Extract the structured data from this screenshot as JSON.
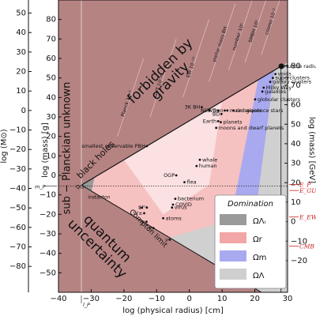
{
  "chart_data": {
    "type": "area",
    "title": "",
    "xlabel": "log (physical radius) [cm]",
    "ylabel_left_outer": "log (M⊙)",
    "ylabel_left_inner": "log (mass) [g]",
    "ylabel_right": "log (mass) [GeV]",
    "xlim": [
      -40,
      30
    ],
    "ylim": [
      -60,
      90
    ],
    "x_ticks": [
      -40,
      -30,
      -20,
      -10,
      0,
      10,
      20,
      30
    ],
    "y_ticks_left_g": [
      -50,
      -40,
      -30,
      -20,
      -10,
      0,
      10,
      20,
      30,
      40,
      50,
      60,
      70,
      80
    ],
    "y_ticks_left_msun": [
      -80,
      -70,
      -60,
      -50,
      -40,
      -30,
      -20,
      -10,
      0,
      10,
      20,
      30,
      40,
      50
    ],
    "y_ticks_right_gev": [
      -20,
      -10,
      0,
      10,
      20,
      30,
      40,
      50,
      60,
      70,
      80
    ],
    "regions": [
      {
        "name": "forbidden by gravity",
        "label_lines": [
          "forbidden by",
          "gravity"
        ]
      },
      {
        "name": "quantum uncertainty",
        "label_lines": [
          "quantum",
          "uncertainty"
        ]
      },
      {
        "name": "sub-Planckian unknown",
        "label_lines": [
          "sub − Planckian unknown"
        ]
      },
      {
        "name": "black holes",
        "label_lines": [
          "black holes"
        ]
      },
      {
        "name": "Compton limit",
        "label_lines": [
          "Compton limit"
        ]
      }
    ],
    "objects": [
      {
        "label": "Hubble radius",
        "x": 28.1,
        "y": 56
      },
      {
        "label": "voids",
        "x": 26.3,
        "y": 52
      },
      {
        "label": "superclusters",
        "x": 25.5,
        "y": 50
      },
      {
        "label": "galaxy clusters",
        "x": 24.7,
        "y": 48
      },
      {
        "label": "Milky Way",
        "x": 22.7,
        "y": 45
      },
      {
        "label": "galaxies",
        "x": 22.3,
        "y": 43
      },
      {
        "label": "globular clusters",
        "x": 20.1,
        "y": 39
      },
      {
        "label": "main sequence stars",
        "x": 11.6,
        "y": 33.3
      },
      {
        "label": "red giants",
        "x": 13.5,
        "y": 33.3
      },
      {
        "label": "planets",
        "x": 9.6,
        "y": 27.3
      },
      {
        "label": "moons and dwarf planets",
        "x": 8.2,
        "y": 24.4
      },
      {
        "label": "Sun",
        "x": 10.8,
        "y": 33.3
      },
      {
        "label": "BD",
        "x": 9.8,
        "y": 31.5
      },
      {
        "label": "WD",
        "x": 8.8,
        "y": 33.3
      },
      {
        "label": "Earth",
        "x": 8.8,
        "y": 27.8
      },
      {
        "label": "NS",
        "x": 6.1,
        "y": 33.3
      },
      {
        "label": "3K BH",
        "x": 3.8,
        "y": 35
      },
      {
        "label": "smallest observable PBH",
        "x": -13,
        "y": 15
      },
      {
        "label": "whale",
        "x": 3.2,
        "y": 8
      },
      {
        "label": "human",
        "x": 2.2,
        "y": 4.8
      },
      {
        "label": "flea",
        "x": -1.5,
        "y": -3.5
      },
      {
        "label": "OGP",
        "x": -4,
        "y": 0
      },
      {
        "label": "bacterium",
        "x": -4.3,
        "y": -12
      },
      {
        "label": "COVID",
        "x": -5,
        "y": -15
      },
      {
        "label": "virus",
        "x": -5.3,
        "y": -16.5
      },
      {
        "label": "atoms",
        "x": -8,
        "y": -22
      },
      {
        "label": "t",
        "x": -14.5,
        "y": -16.6
      },
      {
        "label": "H⁰",
        "x": -13,
        "y": -16.5
      },
      {
        "label": "W±",
        "x": -13.8,
        "y": -19.4
      },
      {
        "label": "p",
        "x": -13.1,
        "y": -23.8
      },
      {
        "label": "e",
        "x": -11,
        "y": -27
      },
      {
        "label": "ν",
        "x": -6,
        "y": -33
      }
    ],
    "upper_bound_labels": [
      "Planck 10⁻¹",
      "GUT 10⁻³⁶",
      "EW 10⁻¹²",
      "stellar mass BH",
      "number 10⁶",
      "SMBH 10⁶",
      "cosmo 10⁻²"
    ],
    "planck_point": {
      "label": "QG",
      "x": -33,
      "y": -5.4
    },
    "planck_mass_label": "m_P",
    "planck_length_label": "l_P",
    "instanton_label": "instanton",
    "energy_marks": [
      {
        "label": "E_P",
        "y_gev": 19.1
      },
      {
        "label": "E_GUT",
        "y_gev": 16
      },
      {
        "label": "E_EW",
        "y_gev": 2.4
      },
      {
        "label": "CMB",
        "y_gev": -12.6
      }
    ],
    "legend": {
      "title": "Domination",
      "placement": "bottom-right",
      "items": [
        {
          "label": "ΩΛᵢ",
          "color": "#9a9a9a"
        },
        {
          "label": "Ωr",
          "color": "#f2a6a6"
        },
        {
          "label": "Ωm",
          "color": "#a9a9f0"
        },
        {
          "label": "ΩΛ",
          "color": "#cfcfcf"
        }
      ]
    },
    "colors": {
      "forbidden": "#b68383",
      "quantum": "#b68383",
      "sub_planck": "#b68383",
      "radiation": "#f6c1c1",
      "radiation_light": "#fbe1e1",
      "matter": "#a9a9f0",
      "lambda": "#d0d0d0",
      "lambda_i": "#9a9a9a",
      "red": "#cc2222"
    }
  }
}
